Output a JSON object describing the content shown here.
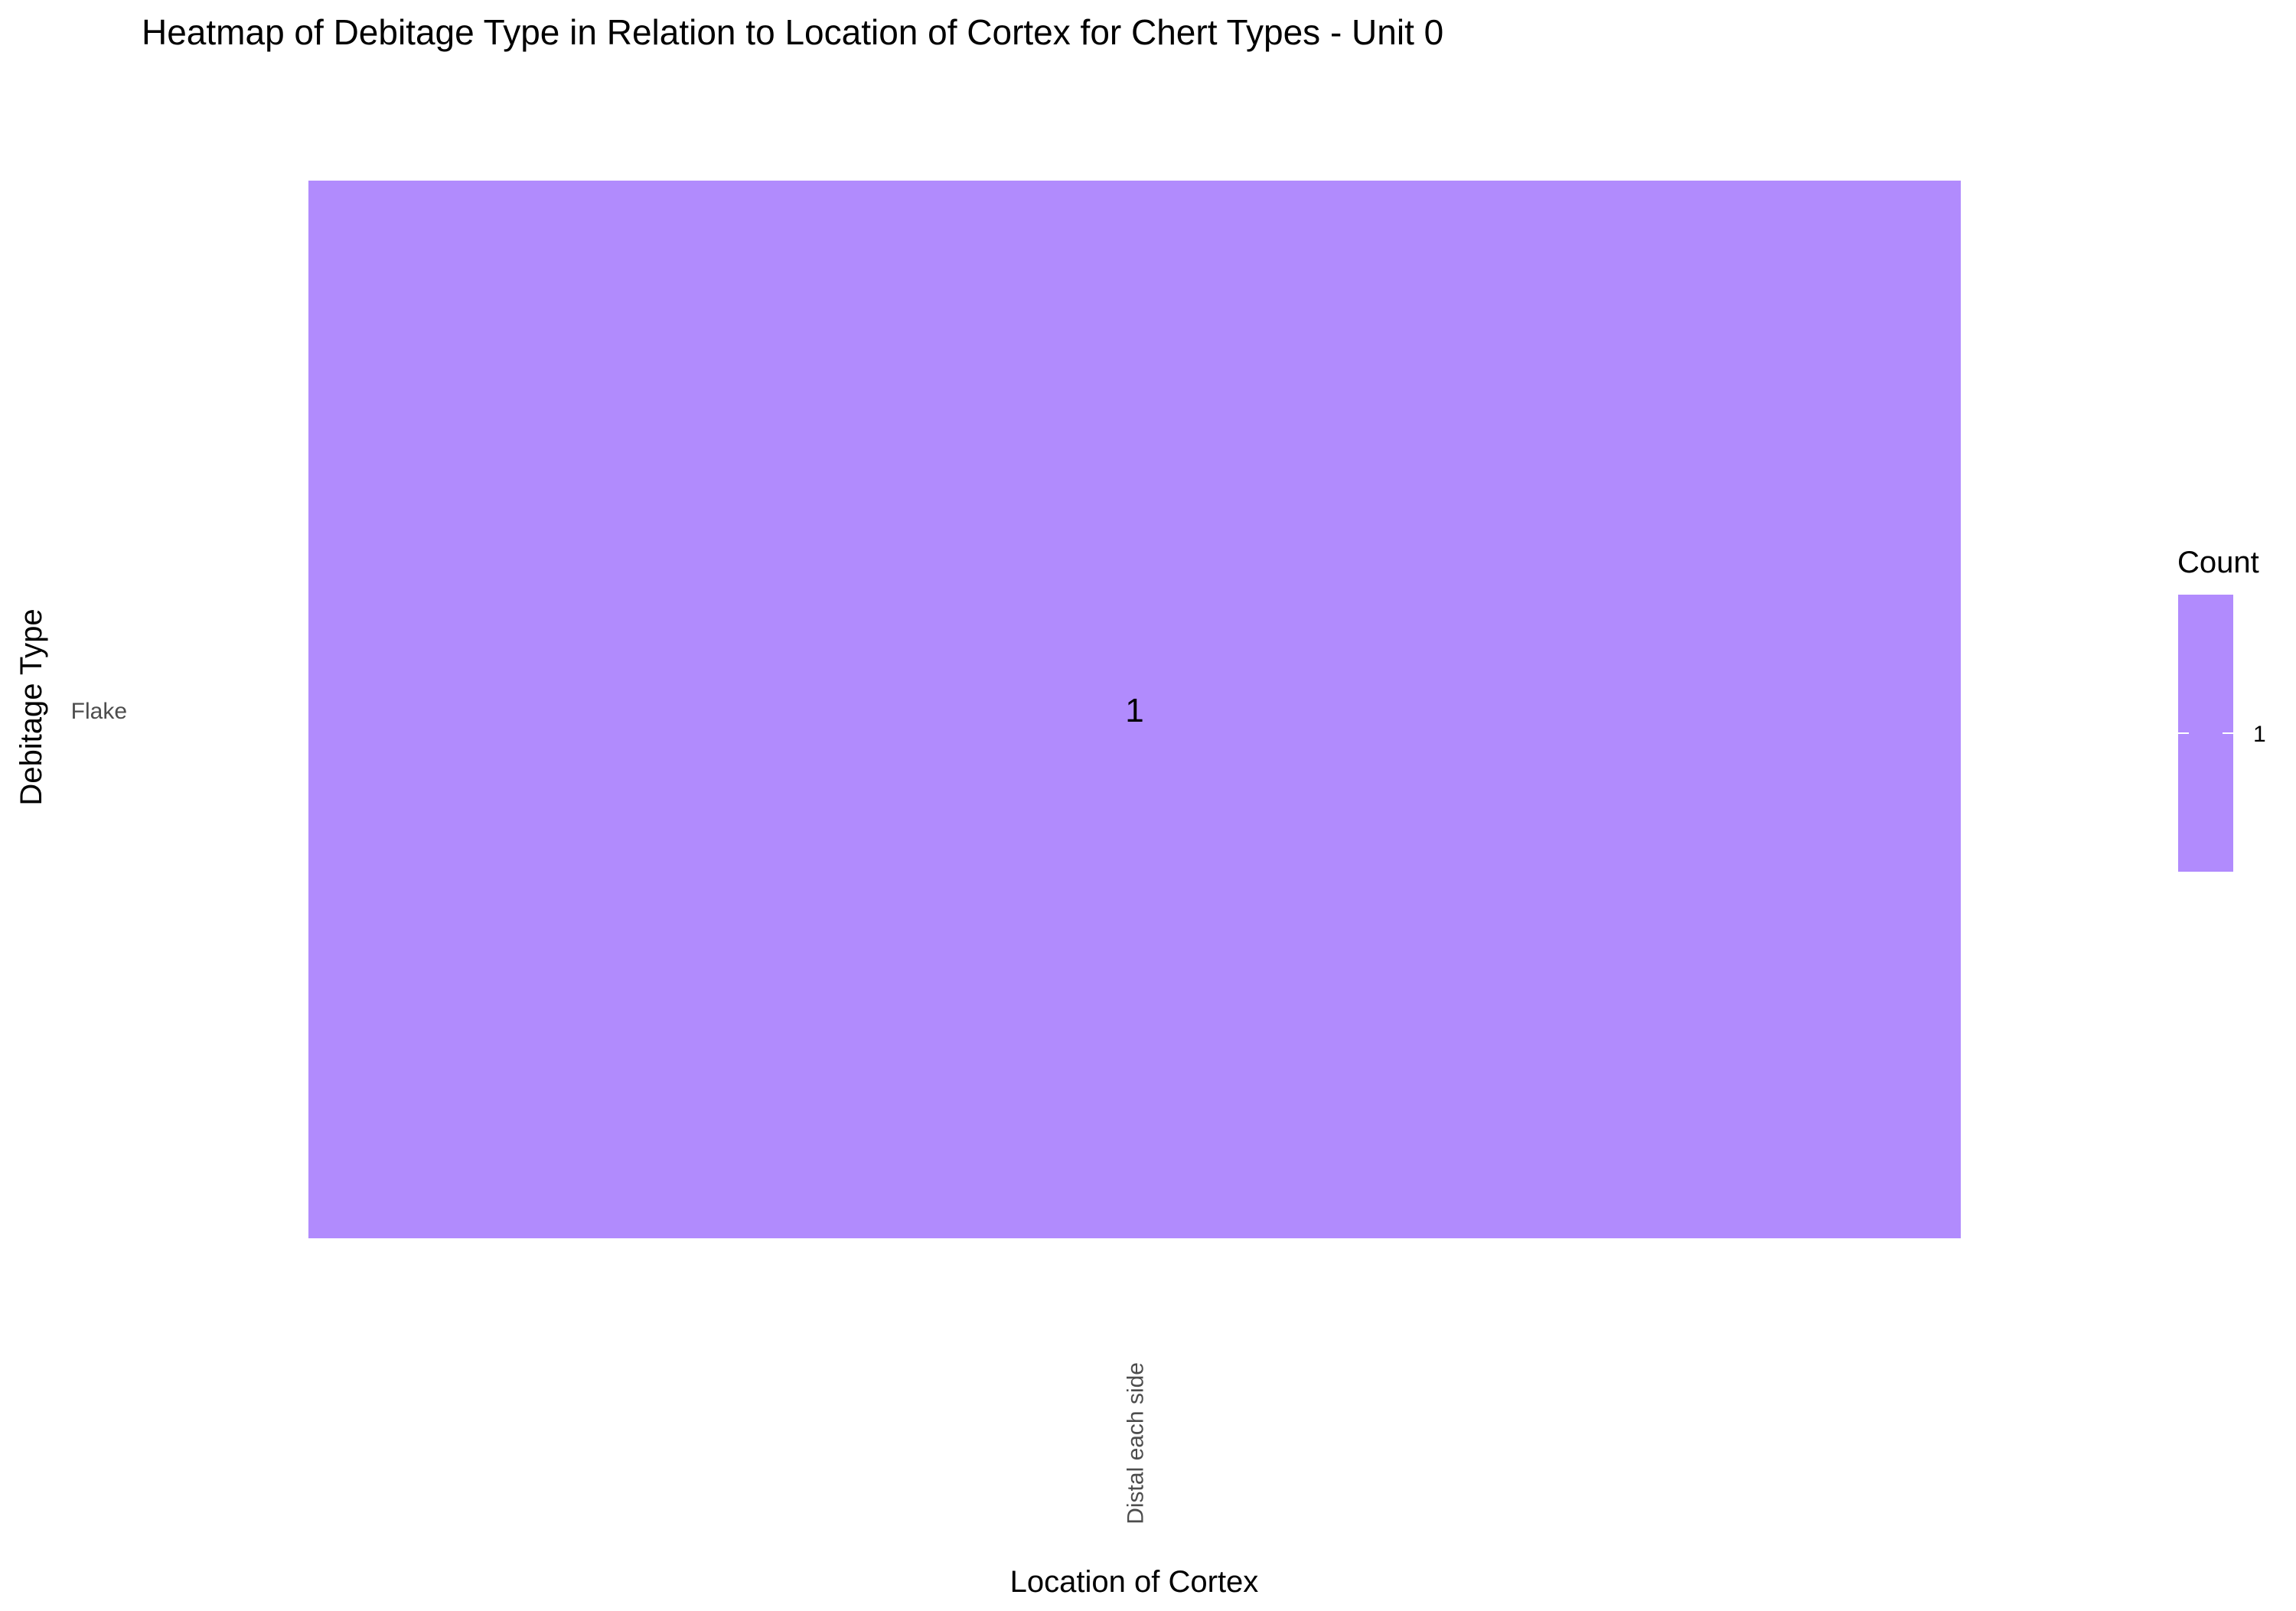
{
  "chart_data": {
    "type": "heatmap",
    "title": "Heatmap of Debitage Type in Relation to Location of Cortex for Chert Types - Unit 0",
    "xlabel": "Location of Cortex",
    "ylabel": "Debitage Type",
    "x_categories": [
      "Distal each side"
    ],
    "y_categories": [
      "Flake"
    ],
    "cells": [
      {
        "x": "Distal each side",
        "y": "Flake",
        "value": 1,
        "label": "1"
      }
    ],
    "legend": {
      "title": "Count",
      "placement": "right",
      "ticks": [
        1
      ],
      "tick_labels": [
        "1"
      ],
      "range": [
        1,
        1
      ]
    },
    "colors": {
      "cell": "#b18bfd",
      "background": "#ffffff",
      "text": "#000000",
      "tick_text": "#4d4d4d",
      "legend_tick": "#ffffff"
    },
    "grid": false
  }
}
